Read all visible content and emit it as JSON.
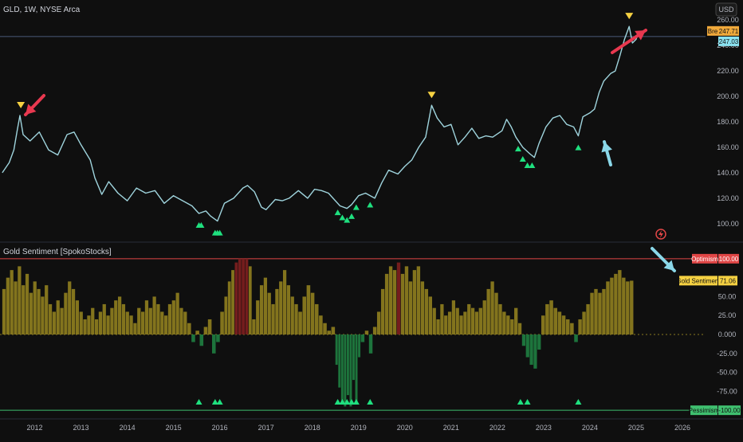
{
  "chart_data": [
    {
      "type": "line",
      "title": "GLD, 1W, NYSE Arca",
      "currency_label": "USD",
      "y_ticks": [
        100,
        120,
        140,
        160,
        180,
        200,
        220,
        240,
        260
      ],
      "ylim": [
        88,
        262
      ],
      "x_ticks": [
        "2012",
        "2013",
        "2014",
        "2015",
        "2016",
        "2017",
        "2018",
        "2019",
        "2020",
        "2021",
        "2022",
        "2023",
        "2024",
        "2025",
        "2026"
      ],
      "x_tick_years": [
        2012,
        2013,
        2014,
        2015,
        2016,
        2017,
        2018,
        2019,
        2020,
        2021,
        2022,
        2023,
        2024,
        2025,
        2026
      ],
      "xlim": [
        2011.25,
        2026.5
      ],
      "price_badges": [
        {
          "text": "Bre",
          "value": 247.71,
          "value_label": "247.71",
          "color": "#f0a93b"
        },
        {
          "text": "",
          "value": 247.03,
          "value_label": "247.03",
          "color": "#8ae1ef"
        }
      ],
      "horizontal_line": 247.03,
      "series": [
        {
          "color": "#9fd4dd",
          "points": [
            [
              2011.3,
              140
            ],
            [
              2011.45,
              148
            ],
            [
              2011.55,
              158
            ],
            [
              2011.62,
              173
            ],
            [
              2011.68,
              185
            ],
            [
              2011.75,
              170
            ],
            [
              2011.9,
              165
            ],
            [
              2012.1,
              172
            ],
            [
              2012.3,
              158
            ],
            [
              2012.5,
              154
            ],
            [
              2012.7,
              170
            ],
            [
              2012.85,
              172
            ],
            [
              2013.0,
              162
            ],
            [
              2013.2,
              150
            ],
            [
              2013.3,
              136
            ],
            [
              2013.45,
              123
            ],
            [
              2013.6,
              133
            ],
            [
              2013.8,
              124
            ],
            [
              2014.0,
              118
            ],
            [
              2014.2,
              128
            ],
            [
              2014.4,
              124
            ],
            [
              2014.6,
              126
            ],
            [
              2014.8,
              116
            ],
            [
              2015.0,
              122
            ],
            [
              2015.2,
              118
            ],
            [
              2015.4,
              114
            ],
            [
              2015.55,
              108
            ],
            [
              2015.7,
              110
            ],
            [
              2015.8,
              106
            ],
            [
              2015.95,
              102
            ],
            [
              2016.1,
              116
            ],
            [
              2016.3,
              120
            ],
            [
              2016.5,
              128
            ],
            [
              2016.6,
              130
            ],
            [
              2016.75,
              125
            ],
            [
              2016.9,
              113
            ],
            [
              2017.0,
              111
            ],
            [
              2017.2,
              119
            ],
            [
              2017.35,
              118
            ],
            [
              2017.5,
              120
            ],
            [
              2017.7,
              126
            ],
            [
              2017.9,
              120
            ],
            [
              2018.05,
              127
            ],
            [
              2018.2,
              126
            ],
            [
              2018.35,
              124
            ],
            [
              2018.5,
              118
            ],
            [
              2018.6,
              114
            ],
            [
              2018.75,
              112
            ],
            [
              2018.85,
              115
            ],
            [
              2019.0,
              122
            ],
            [
              2019.15,
              124
            ],
            [
              2019.35,
              120
            ],
            [
              2019.5,
              132
            ],
            [
              2019.65,
              142
            ],
            [
              2019.85,
              139
            ],
            [
              2020.0,
              145
            ],
            [
              2020.15,
              150
            ],
            [
              2020.3,
              160
            ],
            [
              2020.45,
              168
            ],
            [
              2020.58,
              193
            ],
            [
              2020.7,
              183
            ],
            [
              2020.85,
              176
            ],
            [
              2021.0,
              178
            ],
            [
              2021.15,
              162
            ],
            [
              2021.3,
              168
            ],
            [
              2021.45,
              175
            ],
            [
              2021.6,
              167
            ],
            [
              2021.75,
              169
            ],
            [
              2021.9,
              168
            ],
            [
              2022.1,
              173
            ],
            [
              2022.2,
              182
            ],
            [
              2022.3,
              176
            ],
            [
              2022.4,
              168
            ],
            [
              2022.55,
              160
            ],
            [
              2022.7,
              155
            ],
            [
              2022.8,
              152
            ],
            [
              2022.9,
              163
            ],
            [
              2023.05,
              176
            ],
            [
              2023.2,
              183
            ],
            [
              2023.35,
              185
            ],
            [
              2023.5,
              178
            ],
            [
              2023.65,
              176
            ],
            [
              2023.75,
              169
            ],
            [
              2023.85,
              184
            ],
            [
              2024.0,
              187
            ],
            [
              2024.1,
              190
            ],
            [
              2024.2,
              203
            ],
            [
              2024.3,
              212
            ],
            [
              2024.45,
              218
            ],
            [
              2024.55,
              220
            ],
            [
              2024.65,
              232
            ],
            [
              2024.75,
              245
            ],
            [
              2024.85,
              255
            ],
            [
              2024.92,
              242
            ],
            [
              2025.0,
              245
            ],
            [
              2025.02,
              247
            ]
          ]
        }
      ],
      "sentiment_markers": [
        2015.55,
        2015.6,
        2015.9,
        2015.95,
        2016.0,
        2018.55,
        2018.65,
        2018.75,
        2018.85,
        2018.95,
        2019.25,
        2022.45,
        2022.55,
        2022.65,
        2022.75,
        2023.75
      ],
      "top_markers": [
        {
          "x": 2011.7,
          "y": 185
        },
        {
          "x": 2020.58,
          "y": 193
        },
        {
          "x": 2024.85,
          "y": 255
        }
      ]
    },
    {
      "type": "bar",
      "title": "Gold Sentiment [SpokoStocks]",
      "y_ticks": [
        -100,
        -75,
        -50,
        -25,
        0,
        25,
        50
      ],
      "y_tick_labels": [
        "-100.00",
        "-75.00",
        "-50.00",
        "-25.00",
        "0.000",
        "25.00",
        "50.00"
      ],
      "ylim": [
        -103,
        103
      ],
      "optimism_label": "Optimism",
      "optimism_value": "100.00",
      "pessimism_label": "Pessimism",
      "pessimism_value": "-100.00",
      "series_label": "Gold Sentiment",
      "last_value": 71.06,
      "last_value_label": "71.06",
      "colors": {
        "positive": "#8a7a1f",
        "extreme": "#7a1f1f",
        "negative": "#1f7a3f",
        "upper_line": "#e04646",
        "lower_line": "#3fbf6f"
      },
      "segments": [
        {
          "x0": 2011.3,
          "x1": 2012.3,
          "values": [
            60,
            75,
            85,
            70,
            90,
            65,
            80,
            55,
            70,
            60,
            50,
            65
          ]
        },
        {
          "x0": 2012.3,
          "x1": 2013.3,
          "values": [
            40,
            30,
            45,
            35,
            55,
            70,
            60,
            45,
            30,
            20,
            25,
            35
          ]
        },
        {
          "x0": 2013.3,
          "x1": 2014.3,
          "values": [
            20,
            30,
            40,
            25,
            35,
            45,
            50,
            40,
            30,
            25,
            15,
            35
          ]
        },
        {
          "x0": 2014.3,
          "x1": 2015.3,
          "values": [
            30,
            45,
            35,
            50,
            40,
            30,
            25,
            40,
            45,
            55,
            35,
            30
          ]
        },
        {
          "x0": 2015.3,
          "x1": 2016.1,
          "values": [
            15,
            -10,
            5,
            -15,
            10,
            20,
            -25,
            -10,
            30
          ]
        },
        {
          "x0": 2016.1,
          "x1": 2016.7,
          "values": [
            50,
            70,
            85,
            95,
            100,
            100,
            100,
            90
          ]
        },
        {
          "x0": 2016.7,
          "x1": 2017.7,
          "values": [
            20,
            45,
            65,
            75,
            55,
            40,
            60,
            70,
            85,
            65,
            50,
            40
          ]
        },
        {
          "x0": 2017.7,
          "x1": 2018.5,
          "values": [
            30,
            50,
            65,
            55,
            40,
            25,
            15,
            5,
            10
          ]
        },
        {
          "x0": 2018.5,
          "x1": 2019.05,
          "values": [
            -40,
            -70,
            -90,
            -95,
            -80,
            -95,
            -60,
            -90,
            -30
          ]
        },
        {
          "x0": 2019.05,
          "x1": 2019.4,
          "values": [
            -10,
            5,
            -25,
            10
          ]
        },
        {
          "x0": 2019.4,
          "x1": 2020.6,
          "values": [
            30,
            60,
            80,
            90,
            85,
            95,
            80,
            90,
            70,
            85,
            90,
            70,
            60,
            50
          ]
        },
        {
          "x0": 2020.6,
          "x1": 2021.6,
          "values": [
            35,
            20,
            40,
            25,
            30,
            45,
            35,
            25,
            30,
            40,
            35,
            30
          ]
        },
        {
          "x0": 2021.6,
          "x1": 2022.45,
          "values": [
            35,
            45,
            60,
            70,
            55,
            40,
            30,
            25,
            20,
            35
          ]
        },
        {
          "x0": 2022.45,
          "x1": 2022.95,
          "values": [
            15,
            -15,
            -30,
            -40,
            -45,
            -20
          ]
        },
        {
          "x0": 2022.95,
          "x1": 2023.75,
          "values": [
            25,
            40,
            45,
            35,
            30,
            25,
            20,
            15,
            -10
          ]
        },
        {
          "x0": 2023.75,
          "x1": 2024.95,
          "values": [
            20,
            30,
            40,
            55,
            60,
            55,
            60,
            70,
            75,
            80,
            85,
            75,
            70,
            71
          ]
        }
      ],
      "signal_markers": [
        2015.55,
        2015.9,
        2016.0,
        2018.55,
        2018.65,
        2018.75,
        2018.85,
        2018.95,
        2019.25,
        2022.5,
        2022.65,
        2023.75
      ]
    }
  ]
}
